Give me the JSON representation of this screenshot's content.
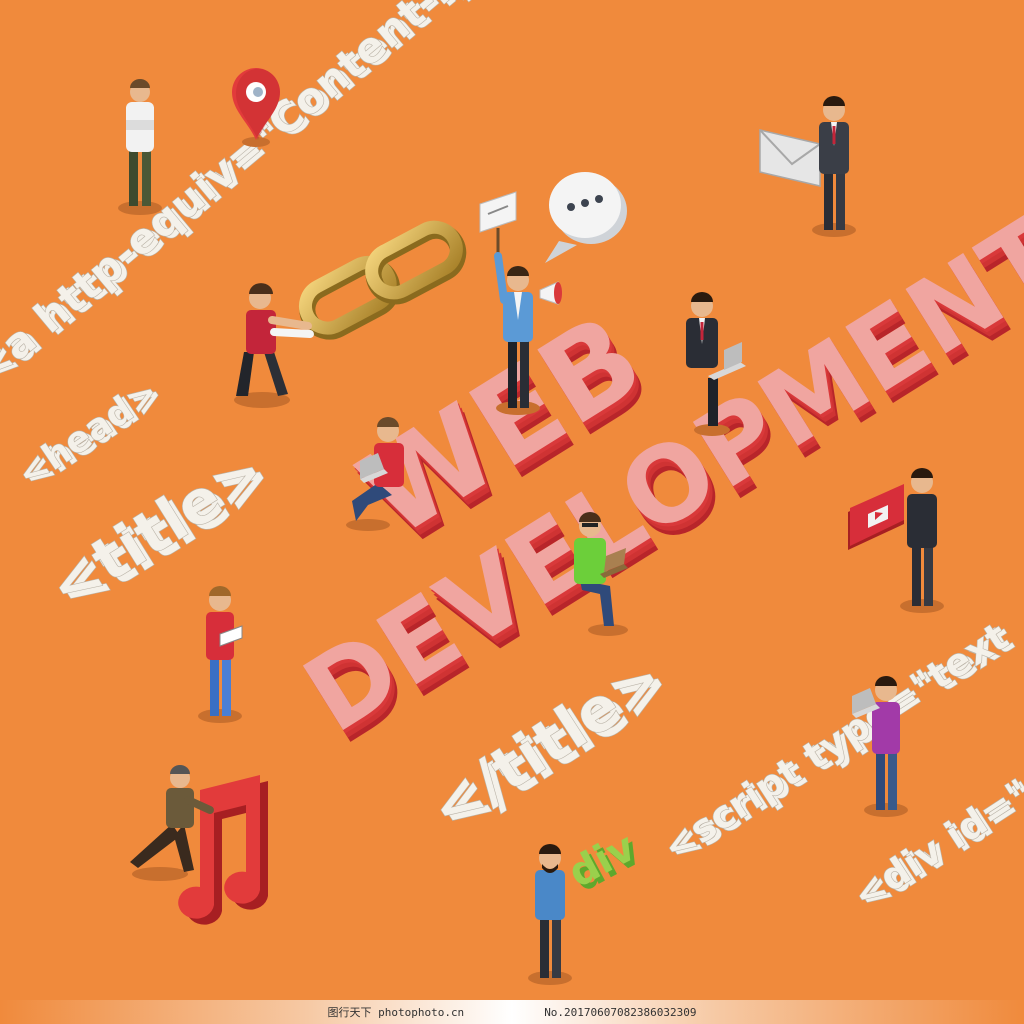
{
  "title": {
    "line1": "WEB",
    "line2": "DEVELOPMENT"
  },
  "code_snippets": {
    "meta": "<a http-equiv=\"Content-Type\" con",
    "head": "<head>",
    "title_open": "<title>",
    "title_close": "</title>",
    "script": "<script type=\"text",
    "div": "<div id=\""
  },
  "props": {
    "div_block": "div"
  },
  "colors": {
    "background": "#f08a3c",
    "title_face": "#f0a5a0",
    "title_side": "#c62a2a",
    "code_face": "#f4f1ea",
    "code_side": "#b9b2a6",
    "music_note": "#d92f2f",
    "chain": "#c9a23a",
    "pin": "#e23b3b"
  },
  "icons": [
    "location-pin-icon",
    "chain-link-icon",
    "speech-bubble-icon",
    "megaphone-icon",
    "envelope-icon",
    "music-note-icon",
    "video-play-icon",
    "laptop-icon",
    "tablet-icon"
  ],
  "watermark": {
    "left": "图行天下 photophoto.cn",
    "right": "No.20170607082386032309"
  }
}
